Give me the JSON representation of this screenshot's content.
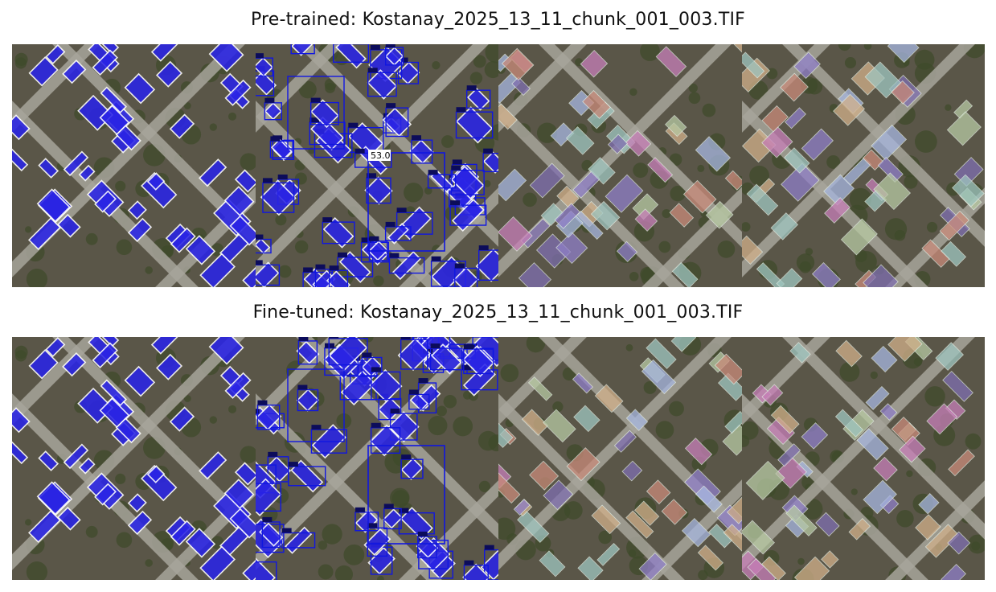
{
  "figure": {
    "rows": [
      {
        "title": "Pre-trained: Kostanay_2025_13_11_chunk_001_003.TIF",
        "panels": [
          {
            "kind": "mask-overlay",
            "palette": "blue"
          },
          {
            "kind": "box-overlay",
            "palette": "blue",
            "highlight_label": "53.0"
          },
          {
            "kind": "instance-overlay",
            "palette": "pastel"
          },
          {
            "kind": "instance-overlay",
            "palette": "pastel"
          }
        ]
      },
      {
        "title": "Fine-tuned: Kostanay_2025_13_11_chunk_001_003.TIF",
        "panels": [
          {
            "kind": "mask-overlay",
            "palette": "blue"
          },
          {
            "kind": "box-overlay",
            "palette": "blue",
            "highlight_label": ""
          },
          {
            "kind": "instance-overlay",
            "palette": "pastel"
          },
          {
            "kind": "instance-overlay",
            "palette": "pastel"
          }
        ]
      }
    ],
    "colors": {
      "terrain": "#5a5648",
      "road": "#a7a49b",
      "vegetation": "#3d4a2a",
      "mask_blue": "#2a24e6",
      "box_blue": "#1016e0",
      "mask_outline": "#ffffff"
    }
  }
}
